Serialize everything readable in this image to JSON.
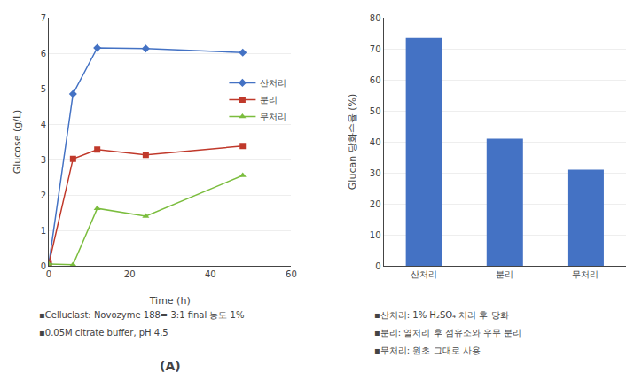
{
  "chart_data": [
    {
      "type": "line",
      "x": [
        0,
        6,
        12,
        24,
        48
      ],
      "series": [
        {
          "name": "산처리",
          "color": "#4472C4",
          "marker": "diamond",
          "values": [
            0.05,
            4.85,
            6.15,
            6.13,
            6.02
          ]
        },
        {
          "name": "분리",
          "color": "#C0392B",
          "marker": "square",
          "values": [
            0.05,
            3.02,
            3.28,
            3.13,
            3.38
          ]
        },
        {
          "name": "무처리",
          "color": "#7BBD3E",
          "marker": "triangle",
          "values": [
            0.05,
            0.03,
            1.62,
            1.4,
            2.55
          ]
        }
      ],
      "xlabel": "Time (h)",
      "ylabel": "Glucose (g/L)",
      "xlim": [
        0,
        60
      ],
      "ylim": [
        0,
        7
      ],
      "xticks": [
        0,
        20,
        40,
        60
      ],
      "yticks": [
        0,
        1,
        2,
        3,
        4,
        5,
        6,
        7
      ],
      "grid": true,
      "legend": "right",
      "annotations": [
        "▪Celluclast: Novozyme 188= 3:1 final 농도 1%",
        "▪0.05M citrate buffer, pH 4.5",
        "(A)"
      ]
    },
    {
      "type": "bar",
      "categories": [
        "산처리",
        "분리",
        "무처리"
      ],
      "values": [
        73.5,
        41.0,
        31.0
      ],
      "color": "#4472C4",
      "ylabel": "Glucan 당화수율 (%)",
      "ylim": [
        0,
        80
      ],
      "yticks": [
        0,
        10,
        20,
        30,
        40,
        50,
        60,
        70,
        80
      ],
      "grid": true,
      "annotations": [
        "▪산처리: 1% H₂SO₄ 처리 후 당화",
        "▪분리: 열처리 후 섬유소와 우무 분리",
        "▪무처리: 원초 그대로 사용"
      ]
    }
  ]
}
